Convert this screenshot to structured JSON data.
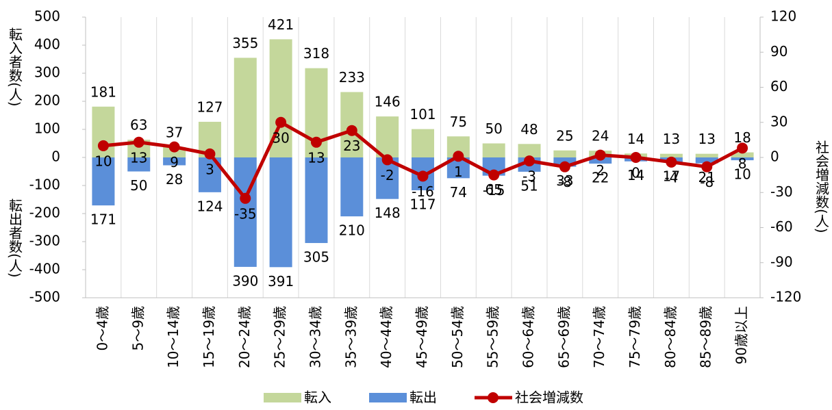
{
  "chart_data": {
    "type": "bar",
    "categories": [
      "0～4歳",
      "5～9歳",
      "10～14歳",
      "15～19歳",
      "20～24歳",
      "25～29歳",
      "30～34歳",
      "35～39歳",
      "40～44歳",
      "45～49歳",
      "50～54歳",
      "55～59歳",
      "60～64歳",
      "65～69歳",
      "70～74歳",
      "75～79歳",
      "80～84歳",
      "85～89歳",
      "90歳以上"
    ],
    "series": [
      {
        "name": "転入",
        "type": "bar",
        "color": "#c4d79b",
        "values": [
          181,
          63,
          37,
          127,
          355,
          421,
          318,
          233,
          146,
          101,
          75,
          50,
          48,
          25,
          24,
          14,
          13,
          13,
          18
        ]
      },
      {
        "name": "転出",
        "type": "bar",
        "color": "#5b8fd9",
        "values": [
          -171,
          -50,
          -28,
          -124,
          -390,
          -391,
          -305,
          -210,
          -148,
          -117,
          -74,
          -65,
          -51,
          -33,
          -22,
          -14,
          -17,
          -21,
          -10
        ],
        "value_labels": [
          "171",
          "50",
          "28",
          "124",
          "390",
          "391",
          "305",
          "210",
          "148",
          "117",
          "74",
          "65",
          "51",
          "33",
          "22",
          "14",
          "17",
          "21",
          "10"
        ]
      },
      {
        "name": "社会増減数",
        "type": "line",
        "axis": "y2",
        "color": "#c00000",
        "values": [
          10,
          13,
          9,
          3,
          -35,
          30,
          13,
          23,
          -2,
          -16,
          1,
          -15,
          -3,
          -8,
          2,
          0,
          -4,
          -8,
          8
        ]
      }
    ],
    "ylim": [
      -500,
      500
    ],
    "yticks": [
      -500,
      -400,
      -300,
      -200,
      -100,
      0,
      100,
      200,
      300,
      400,
      500
    ],
    "y2lim": [
      -120,
      120
    ],
    "y2ticks": [
      -120,
      -90,
      -60,
      -30,
      0,
      30,
      60,
      90,
      120
    ],
    "ylabel_top": "転入者数(人)",
    "ylabel_bottom": "転出者数(人)",
    "y2label": "社会増減数(人)",
    "negative_tick_color": "#c00000",
    "vertical_grid": true,
    "legend": "bottom"
  }
}
